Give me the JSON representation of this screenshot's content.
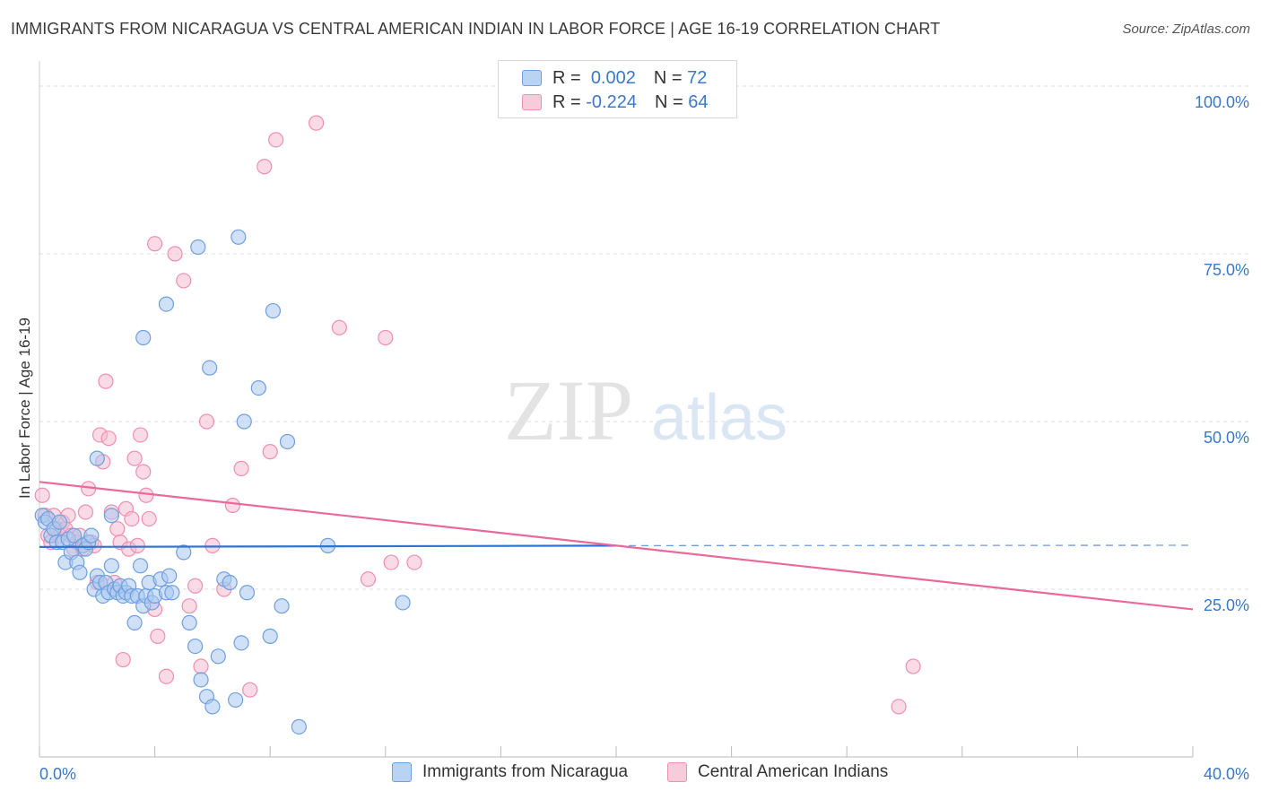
{
  "title": "IMMIGRANTS FROM NICARAGUA VS CENTRAL AMERICAN INDIAN IN LABOR FORCE | AGE 16-19 CORRELATION CHART",
  "source": "Source: ZipAtlas.com",
  "watermark": {
    "zip": "ZIP",
    "atlas": "atlas"
  },
  "legend": {
    "r_label": "R =",
    "n_label": "N =",
    "series": [
      {
        "r": "0.002",
        "n": "72"
      },
      {
        "r": "-0.224",
        "n": "64"
      }
    ]
  },
  "colors": {
    "blue_fill": "#a9c8f0",
    "blue_stroke": "#6f9fde",
    "blue_line": "#2f74d0",
    "pink_fill": "#f6bcd0",
    "pink_stroke": "#ee8fb1",
    "pink_line": "#e8699a",
    "axis_text": "#3a78c9",
    "grid": "#dddddd"
  },
  "chart_data": {
    "type": "scatter",
    "title": "IMMIGRANTS FROM NICARAGUA VS CENTRAL AMERICAN INDIAN IN LABOR FORCE | AGE 16-19 CORRELATION CHART",
    "xlabel": "",
    "ylabel": "In Labor Force | Age 16-19",
    "xlim": [
      0,
      40
    ],
    "ylim": [
      0,
      100
    ],
    "x_tick_labels": [
      "0.0%",
      "40.0%"
    ],
    "y_tick_labels": [
      "25.0%",
      "50.0%",
      "75.0%",
      "100.0%"
    ],
    "y_ticks": [
      25,
      50,
      75,
      100
    ],
    "grid": true,
    "legend_position": "bottom",
    "series": [
      {
        "name": "Immigrants from Nicaragua",
        "color": "#a9c8f0",
        "r": 0.002,
        "n": 72,
        "trend": {
          "x": [
            0,
            20
          ],
          "y": [
            31.3,
            31.5
          ],
          "dashed_extension_to_x": 40
        },
        "points": [
          [
            0.1,
            36
          ],
          [
            0.2,
            35
          ],
          [
            0.3,
            35.5
          ],
          [
            0.4,
            33
          ],
          [
            0.5,
            34
          ],
          [
            0.6,
            32
          ],
          [
            0.7,
            35
          ],
          [
            0.8,
            32
          ],
          [
            0.9,
            29
          ],
          [
            1.0,
            32.5
          ],
          [
            1.1,
            30.5
          ],
          [
            1.2,
            33
          ],
          [
            1.3,
            29
          ],
          [
            1.4,
            27.5
          ],
          [
            1.5,
            31.5
          ],
          [
            1.6,
            31
          ],
          [
            1.7,
            32
          ],
          [
            1.8,
            33
          ],
          [
            1.9,
            25
          ],
          [
            2.0,
            27
          ],
          [
            2.1,
            26
          ],
          [
            2.2,
            24
          ],
          [
            2.3,
            26
          ],
          [
            2.4,
            24.5
          ],
          [
            2.5,
            28.5
          ],
          [
            2.6,
            25
          ],
          [
            2.7,
            24.5
          ],
          [
            2.8,
            25.5
          ],
          [
            2.9,
            24
          ],
          [
            3.0,
            24.5
          ],
          [
            3.1,
            25.5
          ],
          [
            3.2,
            24
          ],
          [
            3.3,
            20
          ],
          [
            3.4,
            24
          ],
          [
            3.5,
            28.5
          ],
          [
            3.6,
            22.5
          ],
          [
            3.7,
            24
          ],
          [
            3.8,
            26
          ],
          [
            3.9,
            23
          ],
          [
            4.0,
            24
          ],
          [
            4.2,
            26.5
          ],
          [
            4.4,
            24.5
          ],
          [
            4.5,
            27
          ],
          [
            4.6,
            24.5
          ],
          [
            5.0,
            30.5
          ],
          [
            5.2,
            20
          ],
          [
            5.4,
            16.5
          ],
          [
            5.6,
            11.5
          ],
          [
            5.8,
            9
          ],
          [
            6.0,
            7.5
          ],
          [
            6.2,
            15
          ],
          [
            6.4,
            26.5
          ],
          [
            6.6,
            26
          ],
          [
            6.8,
            8.5
          ],
          [
            7.0,
            17
          ],
          [
            7.2,
            24.5
          ],
          [
            8.0,
            18
          ],
          [
            8.4,
            22.5
          ],
          [
            9.0,
            4.5
          ],
          [
            10.0,
            31.5
          ],
          [
            12.6,
            23
          ],
          [
            2.0,
            44.5
          ],
          [
            2.5,
            36
          ],
          [
            3.6,
            62.5
          ],
          [
            4.4,
            67.5
          ],
          [
            5.5,
            76
          ],
          [
            5.9,
            58
          ],
          [
            6.9,
            77.5
          ],
          [
            7.6,
            55
          ],
          [
            7.1,
            50
          ],
          [
            8.1,
            66.5
          ],
          [
            8.6,
            47
          ]
        ]
      },
      {
        "name": "Central American Indians",
        "color": "#f6bcd0",
        "r": -0.224,
        "n": 64,
        "trend": {
          "x": [
            0,
            40
          ],
          "y": [
            41,
            22
          ]
        },
        "points": [
          [
            0.1,
            39
          ],
          [
            0.2,
            36
          ],
          [
            0.3,
            33
          ],
          [
            0.4,
            32
          ],
          [
            0.5,
            36
          ],
          [
            0.6,
            34
          ],
          [
            0.7,
            33
          ],
          [
            0.8,
            35
          ],
          [
            0.9,
            34
          ],
          [
            1.0,
            36
          ],
          [
            1.1,
            33
          ],
          [
            1.2,
            31
          ],
          [
            1.3,
            32
          ],
          [
            1.4,
            33
          ],
          [
            1.5,
            31
          ],
          [
            1.6,
            36.5
          ],
          [
            1.7,
            40
          ],
          [
            1.8,
            32
          ],
          [
            1.9,
            31.5
          ],
          [
            2.0,
            26
          ],
          [
            2.1,
            48
          ],
          [
            2.2,
            44
          ],
          [
            2.3,
            56
          ],
          [
            2.4,
            47.5
          ],
          [
            2.5,
            36.5
          ],
          [
            2.6,
            26
          ],
          [
            2.7,
            34
          ],
          [
            2.8,
            32
          ],
          [
            2.9,
            14.5
          ],
          [
            3.0,
            37
          ],
          [
            3.1,
            31
          ],
          [
            3.2,
            35.5
          ],
          [
            3.3,
            44.5
          ],
          [
            3.4,
            31.5
          ],
          [
            3.5,
            48
          ],
          [
            3.6,
            42.5
          ],
          [
            3.7,
            39
          ],
          [
            3.8,
            35.5
          ],
          [
            4.0,
            22
          ],
          [
            4.1,
            18
          ],
          [
            4.4,
            12
          ],
          [
            4.7,
            75
          ],
          [
            5.0,
            71
          ],
          [
            5.2,
            22.5
          ],
          [
            5.4,
            25.5
          ],
          [
            5.6,
            13.5
          ],
          [
            5.8,
            50
          ],
          [
            6.0,
            31.5
          ],
          [
            6.4,
            25
          ],
          [
            6.7,
            37.5
          ],
          [
            7.0,
            43
          ],
          [
            7.3,
            10
          ],
          [
            7.8,
            88
          ],
          [
            8.0,
            45.5
          ],
          [
            8.2,
            92
          ],
          [
            9.6,
            94.5
          ],
          [
            10.4,
            64
          ],
          [
            11.4,
            26.5
          ],
          [
            12.0,
            62.5
          ],
          [
            12.2,
            29
          ],
          [
            13.0,
            29
          ],
          [
            4.0,
            76.5
          ],
          [
            30.3,
            13.5
          ],
          [
            29.8,
            7.5
          ]
        ]
      }
    ]
  },
  "bottom_legend": [
    {
      "label": "Immigrants from Nicaragua"
    },
    {
      "label": "Central American Indians"
    }
  ]
}
